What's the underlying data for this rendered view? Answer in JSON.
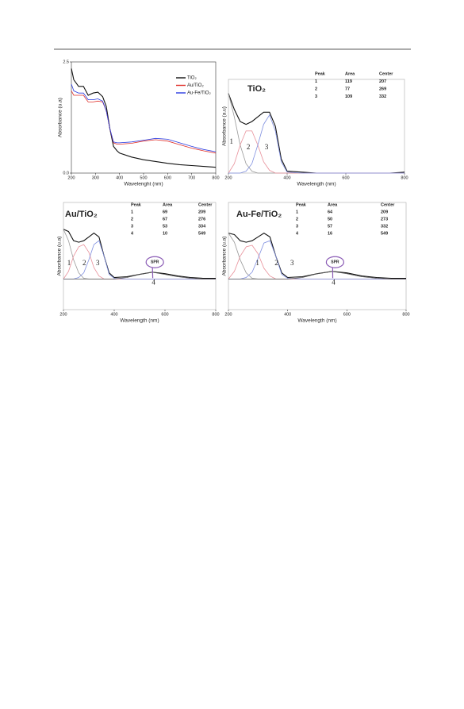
{
  "chart_data": [
    {
      "type": "line",
      "x": [
        200,
        210,
        230,
        250,
        270,
        290,
        310,
        330,
        345,
        360,
        375,
        390,
        400,
        450,
        500,
        550,
        600,
        650,
        700,
        750,
        800
      ],
      "series": [
        {
          "name": "TiO₂",
          "color": "#111111",
          "values": [
            2.35,
            2.1,
            1.95,
            1.95,
            1.75,
            1.8,
            1.82,
            1.72,
            1.5,
            1.0,
            0.6,
            0.5,
            0.45,
            0.36,
            0.3,
            0.26,
            0.22,
            0.19,
            0.17,
            0.15,
            0.13
          ]
        },
        {
          "name": "Au/TiO₂",
          "color": "#e0302a",
          "values": [
            1.85,
            1.75,
            1.75,
            1.75,
            1.6,
            1.6,
            1.62,
            1.6,
            1.4,
            1.0,
            0.68,
            0.65,
            0.65,
            0.67,
            0.72,
            0.75,
            0.72,
            0.64,
            0.56,
            0.5,
            0.45
          ]
        },
        {
          "name": "Au-Fe/TiO₂",
          "color": "#2a3ce0",
          "values": [
            2.0,
            1.85,
            1.8,
            1.8,
            1.65,
            1.65,
            1.67,
            1.62,
            1.4,
            1.0,
            0.7,
            0.68,
            0.68,
            0.7,
            0.74,
            0.78,
            0.76,
            0.68,
            0.6,
            0.53,
            0.48
          ]
        }
      ],
      "xlim": [
        200,
        800
      ],
      "xticks": [
        200,
        300,
        400,
        500,
        600,
        700,
        800
      ],
      "ylim": [
        0,
        2.5
      ],
      "yticks": [
        {
          "value": 0,
          "label": "0.0"
        },
        2.5
      ],
      "x_label": "Wavelenght (nm)",
      "y_label": "Absorbance (u.a)",
      "legend": "upper right"
    },
    {
      "type": "line",
      "title": "TiO₂",
      "x": [
        200,
        220,
        240,
        260,
        280,
        300,
        320,
        340,
        360,
        380,
        400,
        450,
        500,
        550,
        600,
        650,
        700,
        750,
        800
      ],
      "series": [
        {
          "color": "#111111",
          "values": [
            0.85,
            0.68,
            0.55,
            0.52,
            0.55,
            0.6,
            0.65,
            0.65,
            0.5,
            0.15,
            0.02,
            0.01,
            0,
            0,
            0,
            0,
            0,
            0,
            0.01
          ]
        },
        {
          "color": "#999999",
          "values": [
            0.85,
            0.6,
            0.3,
            0.1,
            0.02,
            0,
            0,
            0,
            0,
            0,
            0,
            0,
            0,
            0,
            0,
            0,
            0,
            0,
            0
          ]
        },
        {
          "color": "#e8909a",
          "values": [
            0,
            0.1,
            0.3,
            0.45,
            0.45,
            0.3,
            0.12,
            0.03,
            0,
            0,
            0,
            0,
            0,
            0,
            0,
            0,
            0,
            0,
            0
          ]
        },
        {
          "color": "#8090e0",
          "values": [
            0,
            0,
            0,
            0.02,
            0.1,
            0.3,
            0.52,
            0.62,
            0.45,
            0.12,
            0.01,
            0,
            0,
            0,
            0,
            0,
            0,
            0,
            0
          ]
        }
      ],
      "xlim": [
        200,
        800
      ],
      "xticks": [
        200,
        400,
        600,
        800
      ],
      "ylim": [
        0,
        1
      ],
      "x_label": "Wavelength (nm)",
      "y_label": "Absorbance (a.u)",
      "table": {
        "columns": [
          "Peak",
          "Area",
          "Center"
        ],
        "rows": [
          [
            1,
            119,
            207
          ],
          [
            2,
            77,
            269
          ],
          [
            3,
            109,
            332
          ]
        ]
      },
      "annotations": [
        "1",
        "2",
        "3"
      ]
    },
    {
      "type": "line",
      "title": "Au/TiO₂",
      "x": [
        200,
        220,
        240,
        260,
        280,
        300,
        320,
        340,
        360,
        380,
        400,
        450,
        500,
        550,
        600,
        650,
        700,
        750,
        800
      ],
      "series": [
        {
          "color": "#111111",
          "values": [
            0.65,
            0.62,
            0.5,
            0.48,
            0.5,
            0.55,
            0.6,
            0.55,
            0.3,
            0.08,
            0.02,
            0.03,
            0.06,
            0.09,
            0.07,
            0.04,
            0.02,
            0.01,
            0.01
          ]
        },
        {
          "color": "#999999",
          "values": [
            0.65,
            0.5,
            0.25,
            0.08,
            0.01,
            0,
            0,
            0,
            0,
            0,
            0,
            0,
            0,
            0,
            0,
            0,
            0,
            0,
            0
          ]
        },
        {
          "color": "#e8909a",
          "values": [
            0,
            0.1,
            0.3,
            0.42,
            0.45,
            0.35,
            0.15,
            0.04,
            0,
            0,
            0,
            0,
            0,
            0,
            0,
            0,
            0,
            0,
            0
          ]
        },
        {
          "color": "#8090e0",
          "values": [
            0,
            0,
            0,
            0.02,
            0.08,
            0.25,
            0.45,
            0.5,
            0.3,
            0.06,
            0.01,
            0,
            0,
            0,
            0,
            0,
            0,
            0,
            0
          ]
        },
        {
          "color": "#555555",
          "values": [
            0,
            0,
            0,
            0,
            0,
            0,
            0,
            0,
            0,
            0,
            0,
            0.02,
            0.06,
            0.09,
            0.06,
            0.03,
            0.01,
            0,
            0
          ]
        }
      ],
      "xlim": [
        200,
        800
      ],
      "xticks": [
        200,
        400,
        600,
        800
      ],
      "ylim": [
        -0.4,
        1
      ],
      "x_label": "Wavelength (nm)",
      "y_label": "Absorbance (u.a)",
      "table": {
        "columns": [
          "Peak",
          "Area",
          "Center"
        ],
        "rows": [
          [
            1,
            69,
            209
          ],
          [
            2,
            67,
            276
          ],
          [
            3,
            53,
            334
          ],
          [
            4,
            10,
            549
          ]
        ]
      },
      "annotations": [
        "1",
        "2",
        "3",
        "4",
        "SPR"
      ]
    },
    {
      "type": "line",
      "title": "Au-Fe/TiO₂",
      "x": [
        200,
        220,
        240,
        260,
        280,
        300,
        320,
        340,
        360,
        380,
        400,
        450,
        500,
        550,
        600,
        650,
        700,
        750,
        800
      ],
      "series": [
        {
          "color": "#111111",
          "values": [
            0.6,
            0.58,
            0.5,
            0.48,
            0.5,
            0.55,
            0.6,
            0.55,
            0.3,
            0.08,
            0.02,
            0.03,
            0.07,
            0.1,
            0.08,
            0.04,
            0.02,
            0.01,
            0.01
          ]
        },
        {
          "color": "#999999",
          "values": [
            0.6,
            0.48,
            0.25,
            0.08,
            0.01,
            0,
            0,
            0,
            0,
            0,
            0,
            0,
            0,
            0,
            0,
            0,
            0,
            0,
            0
          ]
        },
        {
          "color": "#e8909a",
          "values": [
            0,
            0.1,
            0.3,
            0.42,
            0.44,
            0.33,
            0.14,
            0.04,
            0,
            0,
            0,
            0,
            0,
            0,
            0,
            0,
            0,
            0,
            0
          ]
        },
        {
          "color": "#8090e0",
          "values": [
            0,
            0,
            0,
            0.02,
            0.09,
            0.27,
            0.47,
            0.5,
            0.3,
            0.06,
            0.01,
            0,
            0,
            0,
            0,
            0,
            0,
            0,
            0
          ]
        },
        {
          "color": "#555555",
          "values": [
            0,
            0,
            0,
            0,
            0,
            0,
            0,
            0,
            0,
            0,
            0,
            0.02,
            0.07,
            0.1,
            0.07,
            0.03,
            0.01,
            0,
            0
          ]
        }
      ],
      "xlim": [
        200,
        800
      ],
      "xticks": [
        200,
        400,
        600,
        800
      ],
      "ylim": [
        -0.4,
        1
      ],
      "x_label": "Wavelength (nm)",
      "y_label": "Absorbance (u.a)",
      "table": {
        "columns": [
          "Peak",
          "Area",
          "Center"
        ],
        "rows": [
          [
            1,
            64,
            209
          ],
          [
            2,
            50,
            273
          ],
          [
            3,
            57,
            332
          ],
          [
            4,
            16,
            549
          ]
        ]
      },
      "annotations": [
        "1",
        "2",
        "3",
        "4",
        "SPR"
      ]
    }
  ]
}
